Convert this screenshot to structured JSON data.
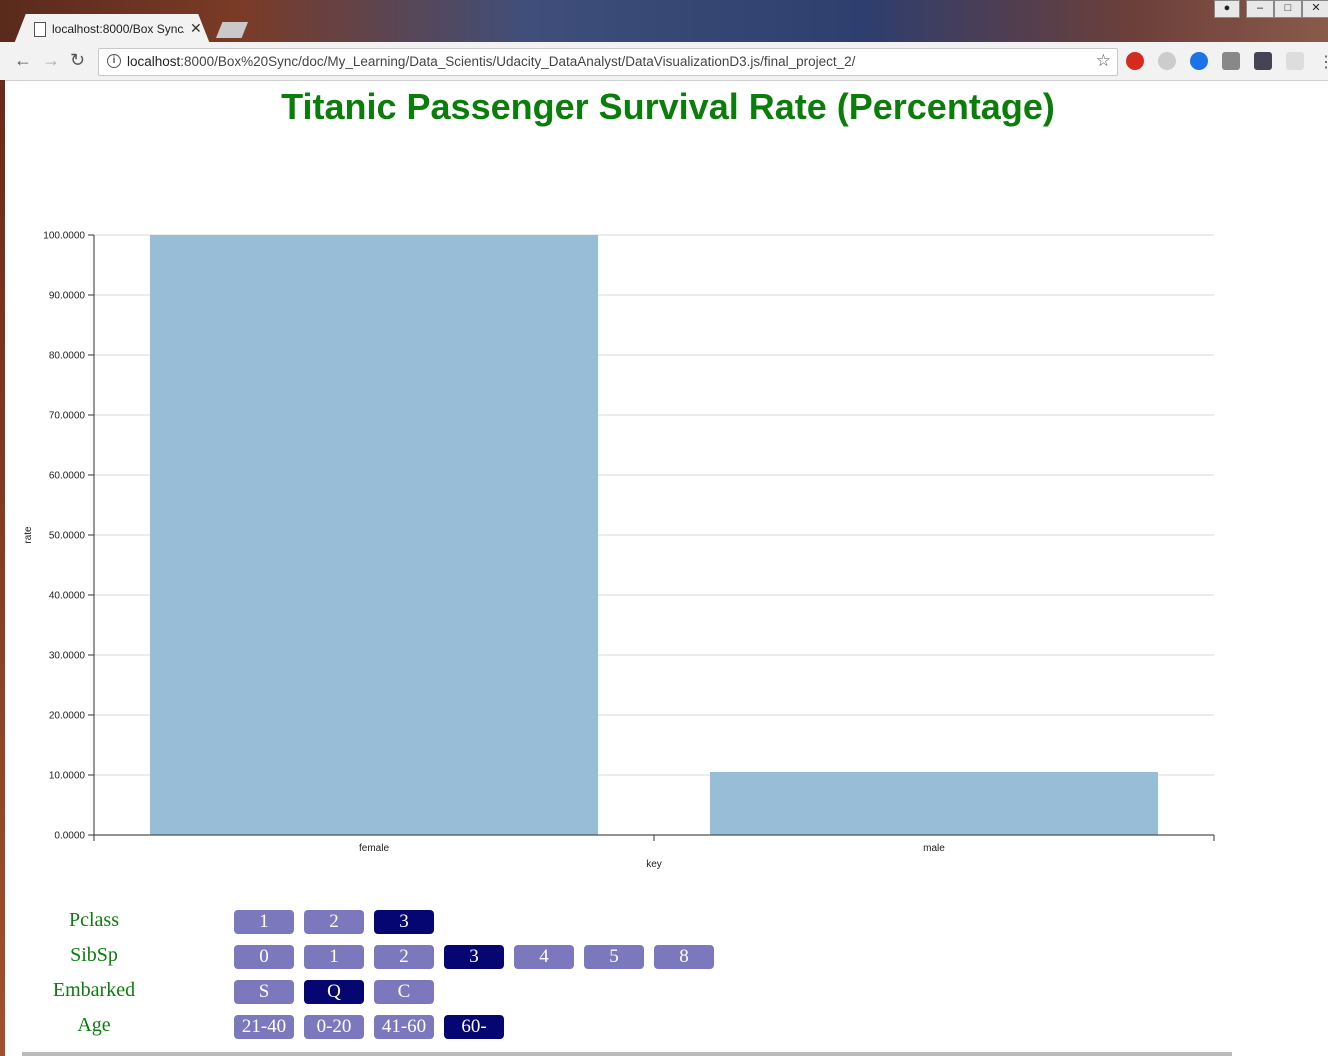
{
  "browser": {
    "tab_title": "localhost:8000/Box Sync/",
    "url_host": "localhost",
    "url_rest": ":8000/Box%20Sync/doc/My_Learning/Data_Scientis/Udacity_DataAnalyst/DataVisualizationD3.js/final_project_2/"
  },
  "page": {
    "title": "Titanic Passenger Survival Rate (Percentage)"
  },
  "colors": {
    "title": "#0a7d0a",
    "bar": "#97bdd7",
    "button_default": "#7b78bd",
    "button_selected": "#060673"
  },
  "chart_data": {
    "type": "bar",
    "categories": [
      "female",
      "male"
    ],
    "values": [
      100.0,
      10.5
    ],
    "xlabel": "key",
    "ylabel": "rate",
    "ylim": [
      0,
      100
    ],
    "yticks": [
      "0.0000",
      "10.0000",
      "20.0000",
      "30.0000",
      "40.0000",
      "50.0000",
      "60.0000",
      "70.0000",
      "80.0000",
      "90.0000",
      "100.0000"
    ],
    "grid": true
  },
  "filters": [
    {
      "label": "Pclass",
      "options": [
        "1",
        "2",
        "3"
      ],
      "selected": [
        "3"
      ]
    },
    {
      "label": "SibSp",
      "options": [
        "0",
        "1",
        "2",
        "3",
        "4",
        "5",
        "8"
      ],
      "selected": [
        "3"
      ]
    },
    {
      "label": "Embarked",
      "options": [
        "S",
        "Q",
        "C"
      ],
      "selected": [
        "Q"
      ]
    },
    {
      "label": "Age",
      "options": [
        "21-40",
        "0-20",
        "41-60",
        "60-"
      ],
      "selected": [
        "60-"
      ]
    }
  ]
}
